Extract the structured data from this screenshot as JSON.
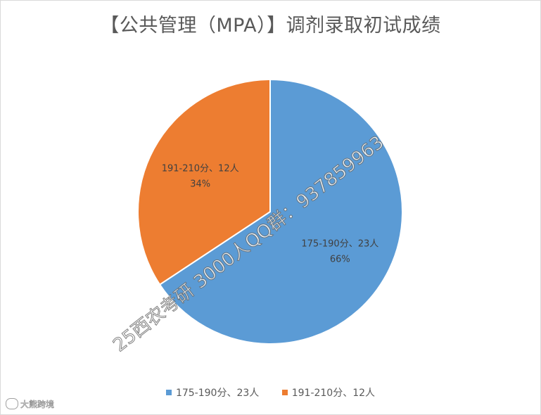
{
  "chart_data": {
    "type": "pie",
    "title": "【公共管理（MPA）】调剂录取初试成绩",
    "slices": [
      {
        "label": "175-190分、23人",
        "value": 23,
        "percent": "66%",
        "color": "#5b9bd5"
      },
      {
        "label": "191-210分、12人",
        "value": 12,
        "percent": "34%",
        "color": "#ed7d31"
      }
    ],
    "legend_position": "bottom"
  },
  "watermark": "25西农考研 3000人QQ群：937859963",
  "logo_text": "大熊跨境"
}
